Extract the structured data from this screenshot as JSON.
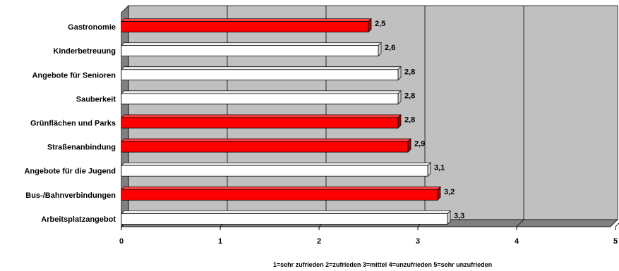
{
  "chart_data": {
    "type": "bar",
    "orientation": "horizontal",
    "style": "3d",
    "categories": [
      "Gastronomie",
      "Kinderbetreuung",
      "Angebote für Senioren",
      "Sauberkeit",
      "Grünflächen und Parks",
      "Straßenanbindung",
      "Angebote für die Jugend",
      "Bus-/Bahnverbindungen",
      "Arbeitsplatzangebot"
    ],
    "values": [
      2.5,
      2.6,
      2.8,
      2.8,
      2.8,
      2.9,
      3.1,
      3.2,
      3.3
    ],
    "value_labels": [
      "2,5",
      "2,6",
      "2,8",
      "2,8",
      "2,8",
      "2,9",
      "3,1",
      "3,2",
      "3,3"
    ],
    "highlighted": [
      true,
      false,
      false,
      false,
      true,
      true,
      false,
      true,
      false
    ],
    "xlim": [
      0,
      5
    ],
    "xticks": [
      "0",
      "1",
      "2",
      "3",
      "4",
      "5"
    ],
    "xlabel": "1=sehr zufrieden 2=zufrieden 3=mittel 4=unzufrieden 5=sehr unzufrieden",
    "ylabel": "",
    "title": "",
    "grid": true,
    "legend": false,
    "colors": {
      "highlight": "#ff0000",
      "normal": "#ffffff",
      "plot_background": "#c0c0c0",
      "floor": "#808080",
      "gridline": "#000000"
    }
  }
}
